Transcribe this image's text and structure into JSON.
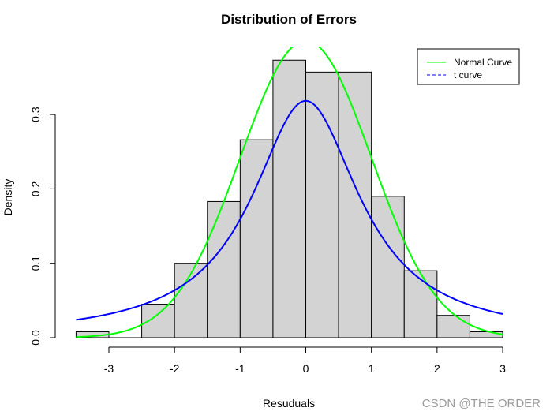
{
  "chart_data": {
    "type": "bar",
    "title": "Distribution of Errors",
    "xlabel": "Resuduals",
    "ylabel": "Density",
    "xlim": [
      -3.5,
      3
    ],
    "ylim": [
      0,
      0.39
    ],
    "x_ticks": [
      -3,
      -2,
      -1,
      0,
      1,
      2,
      3
    ],
    "x_tick_labels": [
      "-3",
      "-2",
      "-1",
      "0",
      "1",
      "2",
      "3"
    ],
    "y_ticks": [
      0,
      0.1,
      0.2,
      0.3
    ],
    "y_tick_labels": [
      "0.0",
      "0.1",
      "0.2",
      "0.3"
    ],
    "bin_edges": [
      -3.5,
      -3,
      -2.5,
      -2,
      -1.5,
      -1,
      -0.5,
      0,
      0.5,
      1,
      1.5,
      2,
      2.5,
      3
    ],
    "values": [
      0.008,
      0,
      0.045,
      0.1,
      0.183,
      0.266,
      0.373,
      0.357,
      0.357,
      0.19,
      0.09,
      0.03,
      0.008
    ],
    "bar_color": "#d3d3d3",
    "series": [
      {
        "name": "Normal Curve",
        "kind": "normal",
        "mean": 0,
        "sd": 1,
        "color": "#00ff00",
        "dash": "solid"
      },
      {
        "name": "t curve",
        "kind": "t",
        "df": 1,
        "color": "#0000ff",
        "dash": "dashed"
      }
    ],
    "legend": {
      "position": "top-right",
      "entries": [
        "Normal Curve",
        "t curve"
      ]
    },
    "grid": false
  },
  "watermark": "CSDN @THE ORDER"
}
